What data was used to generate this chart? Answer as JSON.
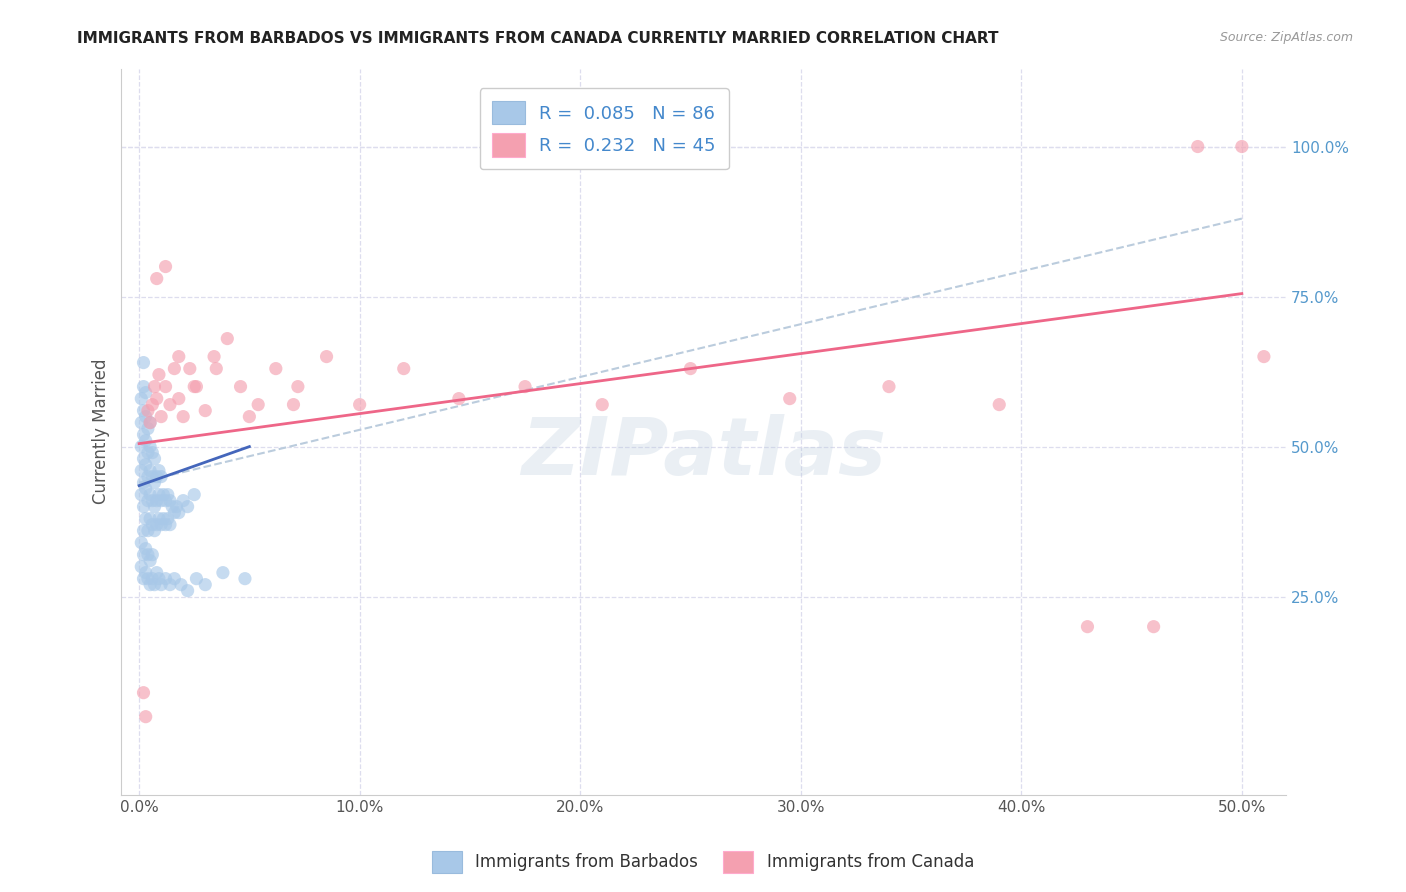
{
  "title": "IMMIGRANTS FROM BARBADOS VS IMMIGRANTS FROM CANADA CURRENTLY MARRIED CORRELATION CHART",
  "source": "Source: ZipAtlas.com",
  "ylabel": "Currently Married",
  "x_tick_labels": [
    "0.0%",
    "10.0%",
    "20.0%",
    "30.0%",
    "40.0%",
    "50.0%"
  ],
  "x_tick_values": [
    0.0,
    0.1,
    0.2,
    0.3,
    0.4,
    0.5
  ],
  "y_tick_labels": [
    "25.0%",
    "50.0%",
    "75.0%",
    "100.0%"
  ],
  "y_tick_values": [
    0.25,
    0.5,
    0.75,
    1.0
  ],
  "xlim": [
    -0.008,
    0.52
  ],
  "ylim": [
    -0.08,
    1.13
  ],
  "blue_color": "#A8C8E8",
  "pink_color": "#F4A0B0",
  "blue_line_color": "#4466BB",
  "pink_line_color": "#EE6688",
  "dashed_line_color": "#BBCCDD",
  "watermark_text": "ZIPatlas",
  "background_color": "#FFFFFF",
  "grid_color": "#DDDDEE",
  "title_fontsize": 11,
  "source_fontsize": 9,
  "tick_fontsize": 11,
  "right_tick_color": "#5599CC",
  "blue_x": [
    0.001,
    0.001,
    0.001,
    0.001,
    0.001,
    0.002,
    0.002,
    0.002,
    0.002,
    0.002,
    0.002,
    0.002,
    0.003,
    0.003,
    0.003,
    0.003,
    0.003,
    0.003,
    0.004,
    0.004,
    0.004,
    0.004,
    0.004,
    0.005,
    0.005,
    0.005,
    0.005,
    0.005,
    0.006,
    0.006,
    0.006,
    0.006,
    0.007,
    0.007,
    0.007,
    0.007,
    0.008,
    0.008,
    0.008,
    0.009,
    0.009,
    0.009,
    0.01,
    0.01,
    0.01,
    0.011,
    0.011,
    0.012,
    0.012,
    0.013,
    0.013,
    0.014,
    0.014,
    0.015,
    0.016,
    0.017,
    0.018,
    0.02,
    0.022,
    0.025,
    0.001,
    0.001,
    0.002,
    0.002,
    0.002,
    0.003,
    0.003,
    0.004,
    0.004,
    0.005,
    0.005,
    0.006,
    0.006,
    0.007,
    0.008,
    0.009,
    0.01,
    0.012,
    0.014,
    0.016,
    0.019,
    0.022,
    0.026,
    0.03,
    0.038,
    0.048
  ],
  "blue_y": [
    0.42,
    0.46,
    0.5,
    0.54,
    0.58,
    0.4,
    0.44,
    0.48,
    0.52,
    0.56,
    0.6,
    0.64,
    0.38,
    0.43,
    0.47,
    0.51,
    0.55,
    0.59,
    0.36,
    0.41,
    0.45,
    0.49,
    0.53,
    0.38,
    0.42,
    0.46,
    0.5,
    0.54,
    0.37,
    0.41,
    0.45,
    0.49,
    0.36,
    0.4,
    0.44,
    0.48,
    0.37,
    0.41,
    0.45,
    0.38,
    0.42,
    0.46,
    0.37,
    0.41,
    0.45,
    0.38,
    0.42,
    0.37,
    0.41,
    0.38,
    0.42,
    0.37,
    0.41,
    0.4,
    0.39,
    0.4,
    0.39,
    0.41,
    0.4,
    0.42,
    0.3,
    0.34,
    0.28,
    0.32,
    0.36,
    0.29,
    0.33,
    0.28,
    0.32,
    0.27,
    0.31,
    0.28,
    0.32,
    0.27,
    0.29,
    0.28,
    0.27,
    0.28,
    0.27,
    0.28,
    0.27,
    0.26,
    0.28,
    0.27,
    0.29,
    0.28
  ],
  "pink_x": [
    0.002,
    0.003,
    0.004,
    0.005,
    0.006,
    0.007,
    0.008,
    0.009,
    0.01,
    0.012,
    0.014,
    0.016,
    0.018,
    0.02,
    0.023,
    0.026,
    0.03,
    0.034,
    0.04,
    0.046,
    0.054,
    0.062,
    0.072,
    0.085,
    0.1,
    0.12,
    0.145,
    0.175,
    0.21,
    0.25,
    0.295,
    0.34,
    0.39,
    0.43,
    0.46,
    0.48,
    0.5,
    0.51,
    0.008,
    0.012,
    0.018,
    0.025,
    0.035,
    0.05,
    0.07
  ],
  "pink_y": [
    0.09,
    0.05,
    0.56,
    0.54,
    0.57,
    0.6,
    0.58,
    0.62,
    0.55,
    0.6,
    0.57,
    0.63,
    0.58,
    0.55,
    0.63,
    0.6,
    0.56,
    0.65,
    0.68,
    0.6,
    0.57,
    0.63,
    0.6,
    0.65,
    0.57,
    0.63,
    0.58,
    0.6,
    0.57,
    0.63,
    0.58,
    0.6,
    0.57,
    0.2,
    0.2,
    1.0,
    1.0,
    0.65,
    0.78,
    0.8,
    0.65,
    0.6,
    0.63,
    0.55,
    0.57
  ]
}
